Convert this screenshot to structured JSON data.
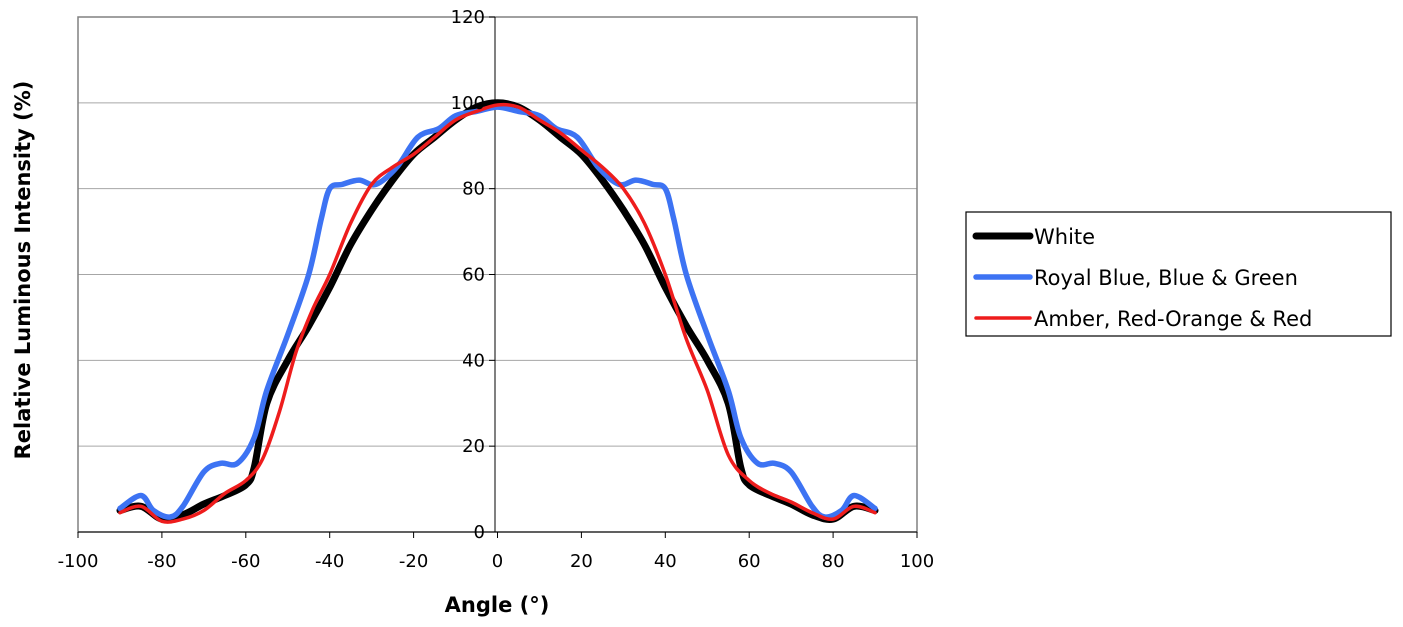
{
  "chart_data": {
    "type": "line",
    "title": "",
    "xlabel": "Angle (°)",
    "ylabel": "Relative Luminous Intensity (%)",
    "xlim": [
      -100,
      100
    ],
    "ylim": [
      0,
      120
    ],
    "x_ticks": [
      "-100",
      "-80",
      "-60",
      "-40",
      "-20",
      "0",
      "20",
      "40",
      "60",
      "80",
      "100"
    ],
    "y_ticks": [
      "0",
      "20",
      "40",
      "60",
      "80",
      "100",
      "120"
    ],
    "grid": "horizontal",
    "legend_position": "right",
    "series": [
      {
        "name": "White",
        "color": "#000000",
        "points": [
          [
            -90,
            5
          ],
          [
            -85,
            6
          ],
          [
            -80,
            3
          ],
          [
            -75,
            4
          ],
          [
            -70,
            6.5
          ],
          [
            -65,
            8.5
          ],
          [
            -60,
            11
          ],
          [
            -58,
            15
          ],
          [
            -55,
            30
          ],
          [
            -50,
            40
          ],
          [
            -45,
            48
          ],
          [
            -40,
            57
          ],
          [
            -35,
            67
          ],
          [
            -30,
            75
          ],
          [
            -25,
            82
          ],
          [
            -20,
            88
          ],
          [
            -15,
            92
          ],
          [
            -10,
            96
          ],
          [
            -5,
            99
          ],
          [
            0,
            100
          ],
          [
            5,
            99
          ],
          [
            10,
            96
          ],
          [
            15,
            92
          ],
          [
            20,
            88
          ],
          [
            25,
            82
          ],
          [
            30,
            75
          ],
          [
            35,
            67
          ],
          [
            40,
            57
          ],
          [
            45,
            48
          ],
          [
            50,
            40
          ],
          [
            55,
            30
          ],
          [
            58,
            15
          ],
          [
            60,
            11
          ],
          [
            65,
            8.5
          ],
          [
            70,
            6.5
          ],
          [
            75,
            4
          ],
          [
            80,
            3
          ],
          [
            85,
            6
          ],
          [
            90,
            5
          ]
        ]
      },
      {
        "name": "Royal Blue, Blue & Green",
        "color": "#3d73f3",
        "points": [
          [
            -90,
            5.5
          ],
          [
            -85,
            8.5
          ],
          [
            -82,
            5
          ],
          [
            -78,
            3.5
          ],
          [
            -75,
            6
          ],
          [
            -70,
            14
          ],
          [
            -66,
            16
          ],
          [
            -62,
            16
          ],
          [
            -58,
            22
          ],
          [
            -55,
            33
          ],
          [
            -50,
            46
          ],
          [
            -45,
            60
          ],
          [
            -42,
            73
          ],
          [
            -40,
            80
          ],
          [
            -37,
            81
          ],
          [
            -33,
            82
          ],
          [
            -29,
            81
          ],
          [
            -24,
            85
          ],
          [
            -19,
            92
          ],
          [
            -14,
            94
          ],
          [
            -10,
            97
          ],
          [
            -5,
            98
          ],
          [
            0,
            99
          ],
          [
            5,
            98
          ],
          [
            10,
            97
          ],
          [
            14,
            94
          ],
          [
            19,
            92
          ],
          [
            24,
            85
          ],
          [
            29,
            81
          ],
          [
            33,
            82
          ],
          [
            37,
            81
          ],
          [
            40,
            80
          ],
          [
            42,
            73
          ],
          [
            45,
            60
          ],
          [
            50,
            46
          ],
          [
            55,
            33
          ],
          [
            58,
            22
          ],
          [
            62,
            16
          ],
          [
            66,
            16
          ],
          [
            70,
            14
          ],
          [
            75,
            6
          ],
          [
            78,
            3.5
          ],
          [
            82,
            5
          ],
          [
            85,
            8.5
          ],
          [
            90,
            5.5
          ]
        ]
      },
      {
        "name": "Amber, Red-Orange & Red",
        "color": "#ee1c1c",
        "points": [
          [
            -90,
            4.5
          ],
          [
            -85,
            6
          ],
          [
            -80,
            2.5
          ],
          [
            -75,
            3
          ],
          [
            -70,
            5
          ],
          [
            -65,
            9
          ],
          [
            -60,
            12
          ],
          [
            -56,
            17
          ],
          [
            -52,
            28
          ],
          [
            -48,
            42
          ],
          [
            -44,
            52
          ],
          [
            -40,
            60
          ],
          [
            -35,
            72
          ],
          [
            -30,
            81
          ],
          [
            -25,
            85
          ],
          [
            -20,
            88
          ],
          [
            -15,
            92
          ],
          [
            -10,
            96
          ],
          [
            -5,
            98
          ],
          [
            0,
            99.5
          ],
          [
            5,
            99
          ],
          [
            10,
            96
          ],
          [
            15,
            93
          ],
          [
            20,
            89
          ],
          [
            25,
            85
          ],
          [
            30,
            80
          ],
          [
            35,
            72
          ],
          [
            40,
            60
          ],
          [
            45,
            45
          ],
          [
            50,
            33
          ],
          [
            55,
            18
          ],
          [
            60,
            12
          ],
          [
            65,
            9
          ],
          [
            70,
            7
          ],
          [
            75,
            4.5
          ],
          [
            80,
            3
          ],
          [
            85,
            6
          ],
          [
            90,
            4.5
          ]
        ]
      }
    ]
  }
}
